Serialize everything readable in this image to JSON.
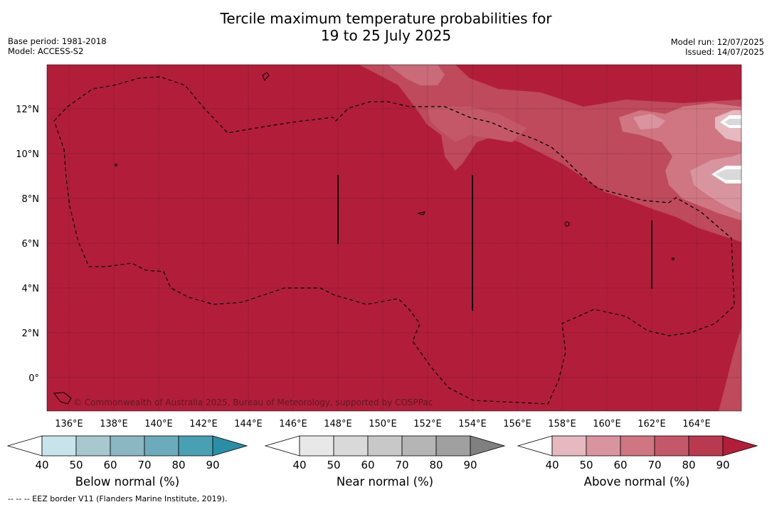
{
  "title_line1": "Tercile maximum temperature probabilities for",
  "title_line2": "19 to 25 July 2025",
  "left_meta": {
    "base_period": "Base period: 1981-2018",
    "model": "Model: ACCESS-S2"
  },
  "right_meta": {
    "model_run": "Model run: 12/07/2025",
    "issued": "Issued: 14/07/2025"
  },
  "map": {
    "lon_ticks": [
      "136°E",
      "138°E",
      "140°E",
      "142°E",
      "144°E",
      "146°E",
      "148°E",
      "150°E",
      "152°E",
      "154°E",
      "156°E",
      "158°E",
      "160°E",
      "162°E",
      "164°E"
    ],
    "lat_ticks": [
      "12°N",
      "10°N",
      "8°N",
      "6°N",
      "4°N",
      "2°N",
      "0°"
    ],
    "copyright": "© Commonwealth of Australia 2025, Bureau of Meteorology, supported by COSPPac",
    "background_color": "#b21e3a"
  },
  "colorbars": [
    {
      "label": "Below normal (%)",
      "ticks": [
        "40",
        "50",
        "60",
        "70",
        "80",
        "90"
      ],
      "colors": [
        "#ffffff",
        "#c9e3ea",
        "#a8c8d0",
        "#8bb6c2",
        "#6cabbb",
        "#4aa0b3",
        "#2a8fa6"
      ]
    },
    {
      "label": "Near normal (%)",
      "ticks": [
        "40",
        "50",
        "60",
        "70",
        "80",
        "90"
      ],
      "colors": [
        "#ffffff",
        "#e8e8e8",
        "#d9d9d9",
        "#c8c8c8",
        "#b5b5b5",
        "#a0a0a0",
        "#808080"
      ]
    },
    {
      "label": "Above normal (%)",
      "ticks": [
        "40",
        "50",
        "60",
        "70",
        "80",
        "90"
      ],
      "colors": [
        "#ffffff",
        "#e6b8c0",
        "#d9959f",
        "#cf7682",
        "#c45868",
        "#b93a4f",
        "#b21e3a"
      ]
    }
  ],
  "footer": "--  --  -- EEZ border V11 (Flanders Marine Institute, 2019)."
}
